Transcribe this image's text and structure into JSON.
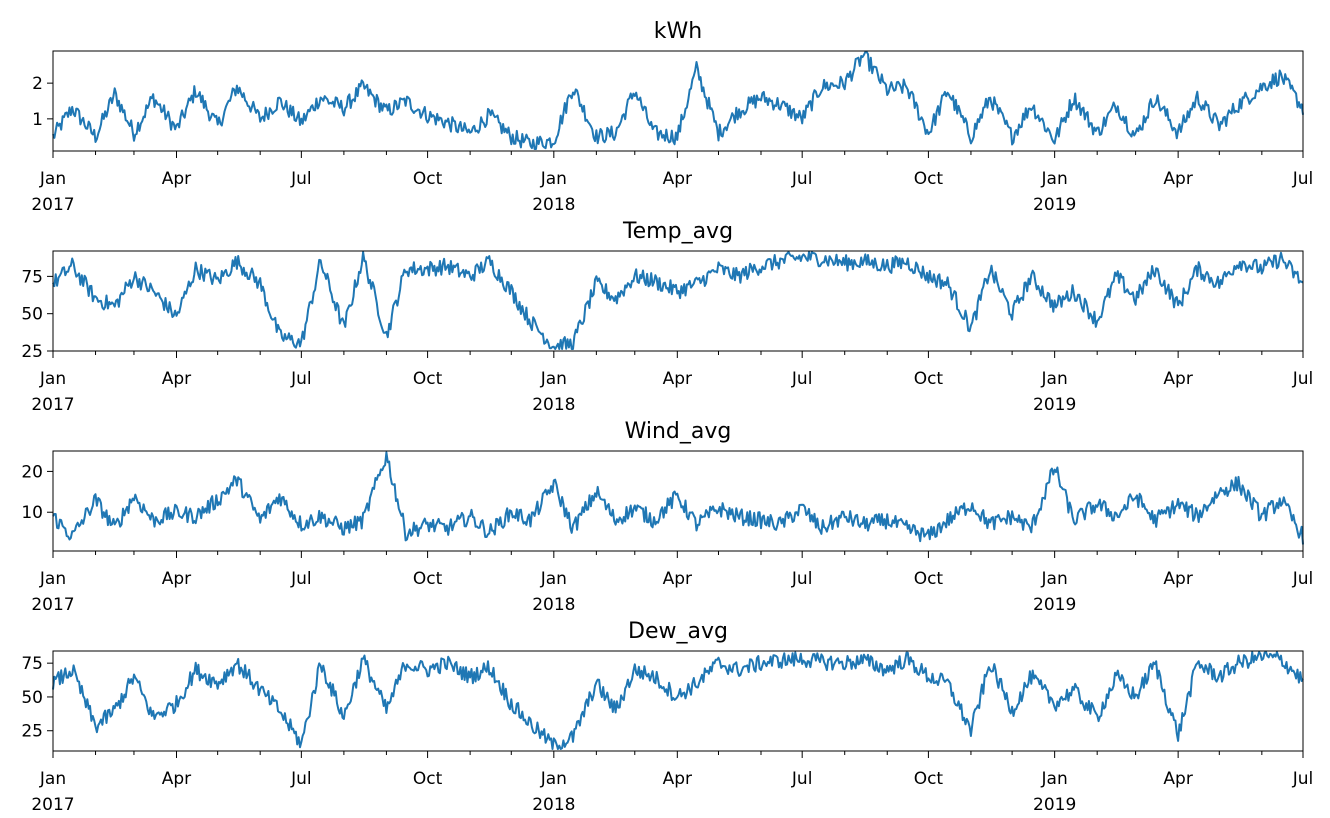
{
  "chart_data": [
    {
      "type": "line",
      "title": "kWh",
      "xlabel": "",
      "ylabel": "",
      "x_range": [
        "2017-01-01",
        "2019-07-01"
      ],
      "ylim": [
        0.1,
        2.9
      ],
      "yticks": [
        {
          "value": 1,
          "label": "1"
        },
        {
          "value": 2,
          "label": "2"
        }
      ],
      "color": "#1f77b4",
      "grid": false,
      "series": [
        {
          "x": [
            "2017-01-01",
            "2017-01-15",
            "2017-02-01",
            "2017-02-15",
            "2017-03-01",
            "2017-03-15",
            "2017-04-01",
            "2017-04-15",
            "2017-05-01",
            "2017-05-15",
            "2017-06-01",
            "2017-06-15",
            "2017-07-01",
            "2017-07-15",
            "2017-08-01",
            "2017-08-15",
            "2017-09-01",
            "2017-09-15",
            "2017-10-01",
            "2017-10-15",
            "2017-11-01",
            "2017-11-15",
            "2017-12-01",
            "2017-12-15",
            "2018-01-01",
            "2018-01-15",
            "2018-02-01",
            "2018-02-15",
            "2018-03-01",
            "2018-03-15",
            "2018-04-01",
            "2018-04-15",
            "2018-05-01",
            "2018-05-15",
            "2018-06-01",
            "2018-06-15",
            "2018-07-01",
            "2018-07-15",
            "2018-08-01",
            "2018-08-15",
            "2018-09-01",
            "2018-09-15",
            "2018-10-01",
            "2018-10-15",
            "2018-11-01",
            "2018-11-15",
            "2018-12-01",
            "2018-12-15",
            "2019-01-01",
            "2019-01-15",
            "2019-02-01",
            "2019-02-15",
            "2019-03-01",
            "2019-03-15",
            "2019-04-01",
            "2019-04-15",
            "2019-05-01",
            "2019-05-15",
            "2019-06-01",
            "2019-06-15",
            "2019-07-01"
          ],
          "values": [
            0.5,
            1.3,
            0.5,
            1.7,
            0.6,
            1.6,
            0.7,
            1.8,
            0.8,
            1.9,
            1.0,
            1.5,
            0.9,
            1.6,
            1.3,
            1.9,
            1.2,
            1.5,
            1.1,
            0.9,
            0.6,
            1.1,
            0.5,
            0.3,
            0.4,
            1.9,
            0.5,
            0.6,
            1.8,
            0.6,
            0.5,
            2.4,
            0.6,
            1.2,
            1.6,
            1.4,
            1.0,
            1.9,
            2.0,
            2.8,
            1.8,
            1.9,
            0.6,
            1.8,
            0.5,
            1.6,
            0.5,
            1.4,
            0.4,
            1.6,
            0.6,
            1.4,
            0.5,
            1.6,
            0.6,
            1.6,
            0.8,
            1.4,
            1.9,
            2.2,
            1.3
          ]
        }
      ]
    },
    {
      "type": "line",
      "title": "Temp_avg",
      "xlabel": "",
      "ylabel": "",
      "x_range": [
        "2017-01-01",
        "2019-07-01"
      ],
      "ylim": [
        25,
        92
      ],
      "yticks": [
        {
          "value": 25,
          "label": "25"
        },
        {
          "value": 50,
          "label": "50"
        },
        {
          "value": 75,
          "label": "75"
        }
      ],
      "color": "#1f77b4",
      "grid": false,
      "series": [
        {
          "x": [
            "2017-01-01",
            "2017-01-15",
            "2017-02-01",
            "2017-02-15",
            "2017-03-01",
            "2017-03-15",
            "2017-04-01",
            "2017-04-15",
            "2017-05-01",
            "2017-05-15",
            "2017-06-01",
            "2017-06-15",
            "2017-07-01",
            "2017-07-15",
            "2017-08-01",
            "2017-08-15",
            "2017-09-01",
            "2017-09-15",
            "2017-10-01",
            "2017-10-15",
            "2017-11-01",
            "2017-11-15",
            "2017-12-01",
            "2017-12-15",
            "2018-01-01",
            "2018-01-15",
            "2018-02-01",
            "2018-02-15",
            "2018-03-01",
            "2018-03-15",
            "2018-04-01",
            "2018-04-15",
            "2018-05-01",
            "2018-05-15",
            "2018-06-01",
            "2018-06-15",
            "2018-07-01",
            "2018-07-15",
            "2018-08-01",
            "2018-08-15",
            "2018-09-01",
            "2018-09-15",
            "2018-10-01",
            "2018-10-15",
            "2018-11-01",
            "2018-11-15",
            "2018-12-01",
            "2018-12-15",
            "2019-01-01",
            "2019-01-15",
            "2019-02-01",
            "2019-02-15",
            "2019-03-01",
            "2019-03-15",
            "2019-04-01",
            "2019-04-15",
            "2019-05-01",
            "2019-05-15",
            "2019-06-01",
            "2019-06-15",
            "2019-07-01"
          ],
          "values": [
            70,
            82,
            60,
            55,
            75,
            65,
            48,
            80,
            72,
            85,
            70,
            35,
            30,
            85,
            40,
            88,
            35,
            80,
            80,
            82,
            75,
            85,
            65,
            45,
            28,
            30,
            70,
            60,
            75,
            72,
            65,
            70,
            80,
            75,
            82,
            85,
            88,
            87,
            84,
            85,
            82,
            85,
            75,
            70,
            40,
            80,
            50,
            75,
            55,
            65,
            45,
            75,
            60,
            80,
            55,
            80,
            70,
            85,
            80,
            87,
            70
          ]
        }
      ]
    },
    {
      "type": "line",
      "title": "Wind_avg",
      "xlabel": "",
      "ylabel": "",
      "x_range": [
        "2017-01-01",
        "2019-07-01"
      ],
      "ylim": [
        0.5,
        25
      ],
      "yticks": [
        {
          "value": 10,
          "label": "10"
        },
        {
          "value": 20,
          "label": "20"
        }
      ],
      "color": "#1f77b4",
      "grid": false,
      "series": [
        {
          "x": [
            "2017-01-01",
            "2017-01-15",
            "2017-02-01",
            "2017-02-15",
            "2017-03-01",
            "2017-03-15",
            "2017-04-01",
            "2017-04-15",
            "2017-05-01",
            "2017-05-15",
            "2017-06-01",
            "2017-06-15",
            "2017-07-01",
            "2017-07-15",
            "2017-08-01",
            "2017-08-15",
            "2017-09-01",
            "2017-09-15",
            "2017-10-01",
            "2017-10-15",
            "2017-11-01",
            "2017-11-15",
            "2017-12-01",
            "2017-12-15",
            "2018-01-01",
            "2018-01-15",
            "2018-02-01",
            "2018-02-15",
            "2018-03-01",
            "2018-03-15",
            "2018-04-01",
            "2018-04-15",
            "2018-05-01",
            "2018-05-15",
            "2018-06-01",
            "2018-06-15",
            "2018-07-01",
            "2018-07-15",
            "2018-08-01",
            "2018-08-15",
            "2018-09-01",
            "2018-09-15",
            "2018-10-01",
            "2018-10-15",
            "2018-11-01",
            "2018-11-15",
            "2018-12-01",
            "2018-12-15",
            "2019-01-01",
            "2019-01-15",
            "2019-02-01",
            "2019-02-15",
            "2019-03-01",
            "2019-03-15",
            "2019-04-01",
            "2019-04-15",
            "2019-05-01",
            "2019-05-15",
            "2019-06-01",
            "2019-06-15",
            "2019-07-01"
          ],
          "values": [
            9,
            4,
            13,
            6,
            14,
            8,
            10,
            9,
            13,
            18,
            8,
            14,
            7,
            9,
            6,
            8,
            24,
            5,
            7,
            6,
            9,
            5,
            10,
            8,
            17,
            6,
            15,
            8,
            11,
            8,
            14,
            7,
            11,
            9,
            8,
            7,
            11,
            6,
            9,
            7,
            8,
            6,
            4,
            8,
            12,
            7,
            9,
            6,
            21,
            8,
            12,
            9,
            14,
            8,
            12,
            9,
            15,
            17,
            9,
            13,
            4
          ]
        }
      ]
    },
    {
      "type": "line",
      "title": "Dew_avg",
      "xlabel": "",
      "ylabel": "",
      "x_range": [
        "2017-01-01",
        "2019-07-01"
      ],
      "ylim": [
        10,
        84
      ],
      "yticks": [
        {
          "value": 25,
          "label": "25"
        },
        {
          "value": 50,
          "label": "50"
        },
        {
          "value": 75,
          "label": "75"
        }
      ],
      "color": "#1f77b4",
      "grid": false,
      "series": [
        {
          "x": [
            "2017-01-01",
            "2017-01-15",
            "2017-02-01",
            "2017-02-15",
            "2017-03-01",
            "2017-03-15",
            "2017-04-01",
            "2017-04-15",
            "2017-05-01",
            "2017-05-15",
            "2017-06-01",
            "2017-06-15",
            "2017-07-01",
            "2017-07-15",
            "2017-08-01",
            "2017-08-15",
            "2017-09-01",
            "2017-09-15",
            "2017-10-01",
            "2017-10-15",
            "2017-11-01",
            "2017-11-15",
            "2017-12-01",
            "2017-12-15",
            "2018-01-01",
            "2018-01-15",
            "2018-02-01",
            "2018-02-15",
            "2018-03-01",
            "2018-03-15",
            "2018-04-01",
            "2018-04-15",
            "2018-05-01",
            "2018-05-15",
            "2018-06-01",
            "2018-06-15",
            "2018-07-01",
            "2018-07-15",
            "2018-08-01",
            "2018-08-15",
            "2018-09-01",
            "2018-09-15",
            "2018-10-01",
            "2018-10-15",
            "2018-11-01",
            "2018-11-15",
            "2018-12-01",
            "2018-12-15",
            "2019-01-01",
            "2019-01-15",
            "2019-02-01",
            "2019-02-15",
            "2019-03-01",
            "2019-03-15",
            "2019-04-01",
            "2019-04-15",
            "2019-05-01",
            "2019-05-15",
            "2019-06-01",
            "2019-06-15",
            "2019-07-01"
          ],
          "values": [
            60,
            70,
            28,
            40,
            65,
            35,
            45,
            70,
            60,
            75,
            55,
            40,
            15,
            75,
            35,
            78,
            40,
            75,
            70,
            75,
            65,
            72,
            45,
            30,
            14,
            20,
            60,
            40,
            70,
            65,
            50,
            60,
            75,
            70,
            75,
            77,
            78,
            76,
            75,
            77,
            70,
            78,
            65,
            60,
            25,
            75,
            40,
            65,
            45,
            55,
            35,
            65,
            50,
            75,
            22,
            75,
            65,
            75,
            80,
            78,
            62
          ]
        }
      ]
    }
  ],
  "x_axis": {
    "ticks": [
      {
        "date": "2017-01-01",
        "month": "Jan",
        "year": "2017"
      },
      {
        "date": "2017-04-01",
        "month": "Apr",
        "year": ""
      },
      {
        "date": "2017-07-01",
        "month": "Jul",
        "year": ""
      },
      {
        "date": "2017-10-01",
        "month": "Oct",
        "year": ""
      },
      {
        "date": "2018-01-01",
        "month": "Jan",
        "year": "2018"
      },
      {
        "date": "2018-04-01",
        "month": "Apr",
        "year": ""
      },
      {
        "date": "2018-07-01",
        "month": "Jul",
        "year": ""
      },
      {
        "date": "2018-10-01",
        "month": "Oct",
        "year": ""
      },
      {
        "date": "2019-01-01",
        "month": "Jan",
        "year": "2019"
      },
      {
        "date": "2019-04-01",
        "month": "Apr",
        "year": ""
      },
      {
        "date": "2019-07-01",
        "month": "Jul",
        "year": ""
      }
    ]
  }
}
